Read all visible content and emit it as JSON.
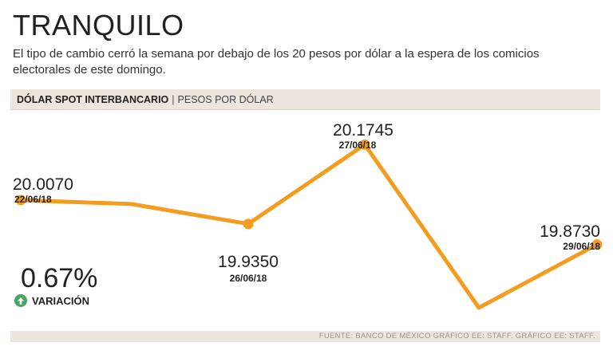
{
  "title": "TRANQUILO",
  "subtitle": "El tipo de cambio cerró la semana por debajo de los 20 pesos por dólar a la espera de los comicios electorales de este domingo.",
  "header": {
    "main": "DÓLAR SPOT INTERBANCARIO",
    "separator": "|",
    "sub": "PESOS POR DÓLAR"
  },
  "variation": {
    "value": "0.67%",
    "label": "VARIACIÓN",
    "direction": "up"
  },
  "footer": "FUENTE: BANCO DE MÉXICO GRÁFICO EE: STAFF.  GRÁFICO EE: STAFF.",
  "colors": {
    "line": "#f39c1e",
    "band": "#ece6de",
    "up": "#4aa564"
  },
  "chart_data": {
    "type": "line",
    "title": "DÓLAR SPOT INTERBANCARIO",
    "ylabel": "PESOS POR DÓLAR",
    "xlabel": "",
    "ylim": [
      19.6,
      20.25
    ],
    "series": [
      {
        "name": "Dólar spot interbancario",
        "points": [
          {
            "index": 0,
            "value": 20.007,
            "label": "20.0070",
            "date": "22/06/18",
            "marker": true
          },
          {
            "index": 1,
            "value": 19.995,
            "label": "",
            "date": "",
            "marker": false
          },
          {
            "index": 2,
            "value": 19.935,
            "label": "19.9350",
            "date": "26/06/18",
            "marker": true
          },
          {
            "index": 3,
            "value": 20.1745,
            "label": "20.1745",
            "date": "27/06/18",
            "marker": true
          },
          {
            "index": 4,
            "value": 19.682,
            "label": "",
            "date": "",
            "marker": false
          },
          {
            "index": 5,
            "value": 19.873,
            "label": "19.8730",
            "date": "29/06/18",
            "marker": true
          }
        ]
      }
    ]
  }
}
